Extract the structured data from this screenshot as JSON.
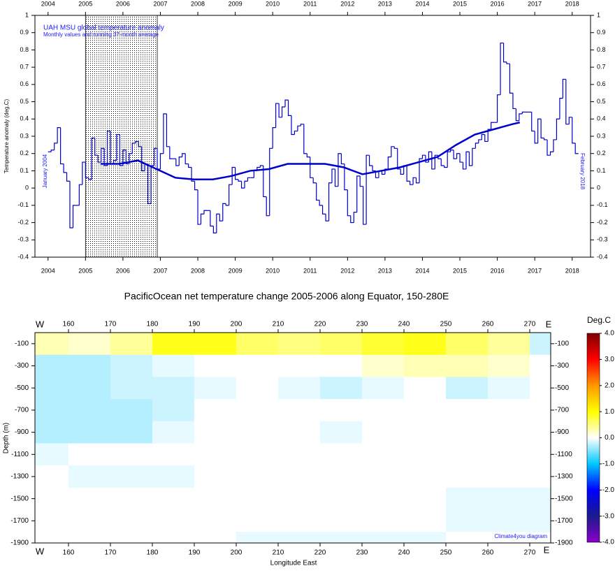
{
  "chart_data": [
    {
      "type": "line",
      "title": "UAH MSU global temperature anomaly",
      "subtitle": "Monthly values and running 37-month average",
      "y_label": "Temperature anomaly (deg.C)",
      "start_label": "January 2004",
      "end_label": "February 2018",
      "xlim": [
        2003.65,
        2018.49
      ],
      "xticks": [
        2004,
        2005,
        2006,
        2007,
        2008,
        2009,
        2010,
        2011,
        2012,
        2013,
        2014,
        2015,
        2016,
        2017,
        2018
      ],
      "ylim": [
        -0.4,
        1
      ],
      "yticks": [
        -0.4,
        -0.3,
        -0.2,
        -0.1,
        0,
        0.1,
        0.2,
        0.3,
        0.4,
        0.5,
        0.6,
        0.7,
        0.8,
        0.9,
        1
      ],
      "shaded_span": [
        2005,
        2006.917
      ],
      "x": [
        2004,
        2004.083,
        2004.167,
        2004.25,
        2004.333,
        2004.417,
        2004.5,
        2004.583,
        2004.667,
        2004.75,
        2004.833,
        2004.917,
        2005,
        2005.083,
        2005.167,
        2005.25,
        2005.333,
        2005.417,
        2005.5,
        2005.583,
        2005.667,
        2005.75,
        2005.833,
        2005.917,
        2006,
        2006.083,
        2006.167,
        2006.25,
        2006.333,
        2006.417,
        2006.5,
        2006.583,
        2006.667,
        2006.75,
        2006.833,
        2006.917,
        2007,
        2007.083,
        2007.167,
        2007.25,
        2007.333,
        2007.417,
        2007.5,
        2007.583,
        2007.667,
        2007.75,
        2007.833,
        2007.917,
        2008,
        2008.083,
        2008.167,
        2008.25,
        2008.333,
        2008.417,
        2008.5,
        2008.583,
        2008.667,
        2008.75,
        2008.833,
        2008.917,
        2009,
        2009.083,
        2009.167,
        2009.25,
        2009.333,
        2009.417,
        2009.5,
        2009.583,
        2009.667,
        2009.75,
        2009.833,
        2009.917,
        2010,
        2010.083,
        2010.167,
        2010.25,
        2010.333,
        2010.417,
        2010.5,
        2010.583,
        2010.667,
        2010.75,
        2010.833,
        2010.917,
        2011,
        2011.083,
        2011.167,
        2011.25,
        2011.333,
        2011.417,
        2011.5,
        2011.583,
        2011.667,
        2011.75,
        2011.833,
        2011.917,
        2012,
        2012.083,
        2012.167,
        2012.25,
        2012.333,
        2012.417,
        2012.5,
        2012.583,
        2012.667,
        2012.75,
        2012.833,
        2012.917,
        2013,
        2013.083,
        2013.167,
        2013.25,
        2013.333,
        2013.417,
        2013.5,
        2013.583,
        2013.667,
        2013.75,
        2013.833,
        2013.917,
        2014,
        2014.083,
        2014.167,
        2014.25,
        2014.333,
        2014.417,
        2014.5,
        2014.583,
        2014.667,
        2014.75,
        2014.833,
        2014.917,
        2015,
        2015.083,
        2015.167,
        2015.25,
        2015.333,
        2015.417,
        2015.5,
        2015.583,
        2015.667,
        2015.75,
        2015.833,
        2015.917,
        2016,
        2016.083,
        2016.167,
        2016.25,
        2016.333,
        2016.417,
        2016.5,
        2016.583,
        2016.667,
        2016.75,
        2016.833,
        2016.917,
        2017,
        2017.083,
        2017.167,
        2017.25,
        2017.333,
        2017.417,
        2017.5,
        2017.583,
        2017.667,
        2017.75,
        2017.833,
        2017.917,
        2018,
        2018.083
      ],
      "step_end": 2018.167,
      "series": [
        {
          "name": "Monthly values",
          "color": "#0000cc",
          "values": [
            0.21,
            0.22,
            0.26,
            0.35,
            0.14,
            0.09,
            0.04,
            -0.23,
            -0.1,
            -0.1,
            0.02,
            0.15,
            0.06,
            0.05,
            0.29,
            0.19,
            0.15,
            0.23,
            0.13,
            0.33,
            0.14,
            0.16,
            0.31,
            0.13,
            0.22,
            0.14,
            0.2,
            0.26,
            0.27,
            0.24,
            0.1,
            0.14,
            -0.09,
            0.13,
            0.23,
            0.11,
            0.2,
            0.43,
            0.24,
            0.17,
            0.17,
            0.13,
            0.18,
            0.2,
            0.14,
            0.12,
            0.04,
            -0.01,
            -0.21,
            -0.15,
            -0.13,
            -0.13,
            -0.22,
            -0.26,
            -0.15,
            -0.19,
            -0.09,
            -0.1,
            0.02,
            0.12,
            0.05,
            0.04,
            0.0,
            0.04,
            0.06,
            0.06,
            0.1,
            0.12,
            0.13,
            -0.05,
            -0.16,
            0.23,
            0.35,
            0.49,
            0.41,
            0.47,
            0.51,
            0.42,
            0.31,
            0.33,
            0.36,
            0.37,
            0.2,
            0.18,
            0.06,
            0.03,
            -0.07,
            -0.1,
            -0.15,
            -0.19,
            0.03,
            0.11,
            0.01,
            0.2,
            0.14,
            -0.01,
            -0.16,
            -0.2,
            -0.14,
            0.07,
            0.01,
            -0.21,
            0.19,
            0.13,
            0.1,
            0.06,
            0.1,
            0.08,
            0.11,
            0.18,
            0.24,
            0.23,
            0.11,
            0.08,
            0.13,
            0.04,
            0.02,
            0.06,
            0.03,
            0.17,
            0.19,
            0.15,
            0.21,
            0.11,
            0.19,
            0.17,
            0.13,
            0.12,
            0.21,
            0.22,
            0.17,
            0.2,
            0.15,
            0.11,
            0.21,
            0.13,
            0.23,
            0.26,
            0.28,
            0.31,
            0.27,
            0.34,
            0.38,
            0.38,
            0.54,
            0.84,
            0.73,
            0.72,
            0.55,
            0.46,
            0.39,
            0.43,
            0.44,
            0.44,
            0.44,
            0.33,
            0.26,
            0.4,
            0.29,
            0.28,
            0.19,
            0.21,
            0.28,
            0.4,
            0.52,
            0.63,
            0.37,
            0.41,
            0.26,
            0.2
          ]
        },
        {
          "name": "Running 37-month average",
          "color": "#0000cc",
          "x": [
            2005.4,
            2005.9,
            2006.4,
            2006.9,
            2007.4,
            2007.9,
            2008.4,
            2008.9,
            2009.4,
            2009.9,
            2010.4,
            2010.9,
            2011.4,
            2011.9,
            2012.4,
            2012.9,
            2013.4,
            2013.9,
            2014.4,
            2014.9,
            2015.4,
            2015.9,
            2016.4,
            2016.6
          ],
          "values": [
            0.14,
            0.14,
            0.16,
            0.11,
            0.06,
            0.05,
            0.05,
            0.07,
            0.1,
            0.11,
            0.14,
            0.14,
            0.14,
            0.12,
            0.08,
            0.1,
            0.12,
            0.15,
            0.18,
            0.25,
            0.31,
            0.34,
            0.37,
            0.38
          ]
        }
      ]
    },
    {
      "type": "heatmap",
      "title": "PacificOcean net temperature change 2005-2006 along Equator, 150-280E",
      "x_label": "Longitude East",
      "y_label": "Depth (m)",
      "west_label": "W",
      "east_label": "E",
      "colorbar_label": "Deg.C",
      "credit": "Climate4you diagram",
      "xlim": [
        152,
        275
      ],
      "xticks": [
        160,
        170,
        180,
        190,
        200,
        210,
        220,
        230,
        240,
        250,
        260,
        270
      ],
      "ylim": [
        -1900,
        0
      ],
      "yticks": [
        -100,
        -300,
        -500,
        -700,
        -900,
        -1100,
        -1300,
        -1500,
        -1700,
        -1900
      ],
      "zlim": [
        -4,
        4
      ],
      "zticks": [
        {
          "value": 4,
          "label": "4.0"
        },
        {
          "value": 3,
          "label": "3.0"
        },
        {
          "value": 2,
          "label": "2.0"
        },
        {
          "value": 1,
          "label": "1.0"
        },
        {
          "value": 0,
          "label": "0.0"
        },
        {
          "value": -1,
          "label": "-1.0"
        },
        {
          "value": -2,
          "label": "-2.0"
        },
        {
          "value": -3,
          "label": "-3.0"
        },
        {
          "value": -4,
          "label": "-4.0"
        }
      ],
      "colorscale": [
        [
          -4,
          "#8b00c8"
        ],
        [
          -3,
          "#1a1a8c"
        ],
        [
          -2,
          "#0000ff"
        ],
        [
          -1,
          "#00c8ff"
        ],
        [
          0,
          "#ffffff"
        ],
        [
          1,
          "#ffff00"
        ],
        [
          2,
          "#ff9900"
        ],
        [
          3,
          "#ff0000"
        ],
        [
          4,
          "#800000"
        ]
      ],
      "x": [
        155,
        165,
        175,
        185,
        195,
        205,
        215,
        225,
        235,
        245,
        255,
        265,
        275
      ],
      "y": [
        -100,
        -300,
        -500,
        -700,
        -900,
        -1100,
        -1300,
        -1500,
        -1700,
        -1900
      ],
      "z": [
        [
          0.3,
          0.2,
          0.4,
          0.9,
          0.9,
          0.6,
          0.5,
          0.6,
          0.8,
          0.9,
          0.6,
          0.4,
          -0.2
        ],
        [
          -0.3,
          -0.3,
          -0.2,
          -0.1,
          0,
          0,
          0,
          0,
          0.2,
          0.3,
          0.3,
          0.2,
          0
        ],
        [
          -0.3,
          -0.3,
          -0.2,
          -0.2,
          -0.1,
          0,
          -0.1,
          -0.2,
          -0.1,
          0,
          -0.2,
          -0.1,
          0
        ],
        [
          -0.3,
          -0.3,
          -0.3,
          -0.2,
          0,
          0,
          0,
          0,
          0,
          0,
          0,
          0,
          0
        ],
        [
          -0.3,
          -0.3,
          -0.3,
          -0.1,
          0,
          0,
          0,
          -0.1,
          0,
          0,
          0,
          0,
          0
        ],
        [
          -0.1,
          0,
          0,
          0,
          0,
          0,
          0,
          0,
          0,
          0,
          0,
          0,
          0
        ],
        [
          0,
          -0.1,
          -0.1,
          -0.1,
          0,
          0,
          0,
          0,
          0,
          0,
          0,
          0,
          0
        ],
        [
          0,
          0,
          0,
          0,
          0,
          0,
          0,
          0,
          0,
          0,
          -0.1,
          -0.1,
          -0.1
        ],
        [
          0,
          0,
          0,
          0,
          0,
          0,
          0,
          0,
          0,
          0,
          -0.1,
          -0.1,
          -0.1
        ],
        [
          0,
          0,
          0,
          0,
          0,
          -0.1,
          -0.1,
          -0.1,
          -0.1,
          -0.1,
          0,
          0,
          0
        ]
      ]
    }
  ]
}
